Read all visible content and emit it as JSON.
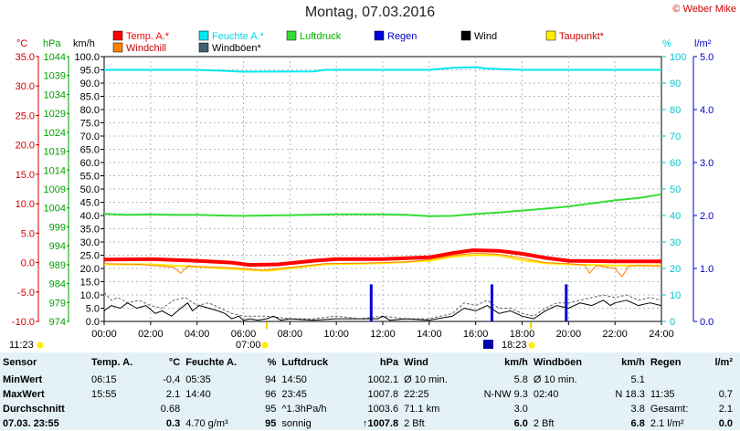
{
  "header": {
    "title": "Montag, 07.03.2016",
    "copyright": "© Weber Mike"
  },
  "legend": [
    {
      "label": "Temp. A.*",
      "color": "#ff0000",
      "textColor": "#ff0000"
    },
    {
      "label": "Feuchte A.*",
      "color": "#00e8f0",
      "textColor": "#00d8e0"
    },
    {
      "label": "Luftdruck",
      "color": "#33dd33",
      "textColor": "#00b000"
    },
    {
      "label": "Regen",
      "color": "#0000dd",
      "textColor": "#0000cc"
    },
    {
      "label": "Wind",
      "color": "#000000",
      "textColor": "#000000"
    },
    {
      "label": "Taupunkt*",
      "color": "#ffee00",
      "textColor": "#d00000"
    },
    {
      "label": "Windchill",
      "color": "#ff8000",
      "textColor": "#d00000"
    },
    {
      "label": "Windböen*",
      "color": "#406070",
      "textColor": "#000000"
    }
  ],
  "axis_titles": {
    "temp": "°C",
    "press": "hPa",
    "wind": "km/h",
    "hum": "%",
    "rain": "l/m²"
  },
  "chart_data": {
    "type": "line",
    "x_ticks": [
      "00:00",
      "02:00",
      "04:00",
      "06:00",
      "08:00",
      "10:00",
      "12:00",
      "14:00",
      "16:00",
      "18:00",
      "20:00",
      "22:00",
      "24:00"
    ],
    "x_range_hours": [
      0,
      24
    ],
    "temp_ticks": [
      "35.0",
      "30.0",
      "25.0",
      "20.0",
      "15.0",
      "10.0",
      "5.0",
      "0.0",
      "-5.0",
      "-10.0"
    ],
    "temp_range": [
      -10,
      35
    ],
    "press_ticks": [
      "1044",
      "1039",
      "1034",
      "1029",
      "1024",
      "1019",
      "1014",
      "1009",
      "1004",
      "999",
      "994",
      "989",
      "984",
      "979",
      "974"
    ],
    "press_range": [
      974,
      1044
    ],
    "wind_ticks": [
      "100.0",
      "95.0",
      "90.0",
      "85.0",
      "80.0",
      "75.0",
      "70.0",
      "65.0",
      "60.0",
      "55.0",
      "50.0",
      "45.0",
      "40.0",
      "35.0",
      "30.0",
      "25.0",
      "20.0",
      "15.0",
      "10.0",
      "5.0",
      "0.0"
    ],
    "wind_range": [
      0,
      100
    ],
    "hum_ticks": [
      "100",
      "90",
      "80",
      "70",
      "60",
      "50",
      "40",
      "30",
      "20",
      "10",
      "0"
    ],
    "hum_range": [
      0,
      100
    ],
    "rain_ticks": [
      "5.0",
      "4.0",
      "3.0",
      "2.0",
      "1.0",
      "0.0"
    ],
    "rain_range": [
      0,
      5
    ],
    "series": [
      {
        "name": "Temp. A.*",
        "axis": "temp",
        "color": "#ff0000",
        "width": 4,
        "points": [
          [
            0,
            0.5
          ],
          [
            2,
            0.6
          ],
          [
            4,
            0.3
          ],
          [
            5.5,
            0
          ],
          [
            6.25,
            -0.4
          ],
          [
            7.5,
            -0.3
          ],
          [
            9,
            0.3
          ],
          [
            10,
            0.6
          ],
          [
            12,
            0.6
          ],
          [
            14,
            0.9
          ],
          [
            15,
            1.6
          ],
          [
            15.9,
            2.1
          ],
          [
            17,
            2
          ],
          [
            18,
            1.5
          ],
          [
            19,
            0.8
          ],
          [
            20,
            0.3
          ],
          [
            22,
            0.2
          ],
          [
            24,
            0.2
          ]
        ]
      },
      {
        "name": "Taupunkt*",
        "axis": "temp",
        "color": "#ffe600",
        "width": 2,
        "points": [
          [
            0,
            -0.3
          ],
          [
            2,
            -0.3
          ],
          [
            4,
            -0.7
          ],
          [
            6,
            -1.2
          ],
          [
            7,
            -1.4
          ],
          [
            8,
            -1
          ],
          [
            9.5,
            -0.3
          ],
          [
            12,
            -0.1
          ],
          [
            14,
            0.3
          ],
          [
            15,
            1
          ],
          [
            16,
            1.3
          ],
          [
            17,
            1.2
          ],
          [
            18,
            0.4
          ],
          [
            19,
            -0.1
          ],
          [
            20,
            -0.3
          ],
          [
            22,
            -0.5
          ],
          [
            24,
            -0.5
          ]
        ]
      },
      {
        "name": "Windchill",
        "axis": "temp",
        "color": "#ff8000",
        "width": 1,
        "points": [
          [
            0,
            -0.2
          ],
          [
            1.5,
            -0.3
          ],
          [
            3,
            -0.8
          ],
          [
            3.3,
            -1.8
          ],
          [
            3.6,
            -0.6
          ],
          [
            5,
            -0.8
          ],
          [
            6,
            -1
          ],
          [
            6.8,
            -1.3
          ],
          [
            8,
            -0.8
          ],
          [
            9.5,
            -0.2
          ],
          [
            11,
            -0.1
          ],
          [
            12,
            0
          ],
          [
            13,
            0.1
          ],
          [
            14,
            0.5
          ],
          [
            15,
            1.2
          ],
          [
            16,
            1.6
          ],
          [
            17,
            1.4
          ],
          [
            18,
            0.8
          ],
          [
            19,
            0
          ],
          [
            20,
            -0.2
          ],
          [
            20.7,
            -0.4
          ],
          [
            20.9,
            -1.8
          ],
          [
            21.2,
            -0.5
          ],
          [
            22,
            -1
          ],
          [
            22.3,
            -2.4
          ],
          [
            22.6,
            -0.6
          ],
          [
            23,
            -0.5
          ],
          [
            24,
            -0.6
          ]
        ]
      },
      {
        "name": "Luftdruck",
        "axis": "press",
        "color": "#33dd33",
        "width": 2,
        "points": [
          [
            0,
            1002.4
          ],
          [
            1,
            1002.2
          ],
          [
            2,
            1002.3
          ],
          [
            3,
            1002.2
          ],
          [
            4,
            1002.2
          ],
          [
            5,
            1002
          ],
          [
            6,
            1001.9
          ],
          [
            8,
            1002.1
          ],
          [
            10,
            1002.3
          ],
          [
            12,
            1002.3
          ],
          [
            13,
            1002.2
          ],
          [
            14,
            1001.8
          ],
          [
            15,
            1001.9
          ],
          [
            16,
            1002.4
          ],
          [
            17,
            1002.8
          ],
          [
            18,
            1003.3
          ],
          [
            19,
            1003.8
          ],
          [
            20,
            1004.4
          ],
          [
            21,
            1005.2
          ],
          [
            22,
            1006
          ],
          [
            23,
            1006.6
          ],
          [
            24,
            1007.6
          ]
        ]
      },
      {
        "name": "Feuchte A.*",
        "axis": "hum",
        "color": "#00e8f0",
        "width": 2,
        "points": [
          [
            0,
            95
          ],
          [
            4,
            95
          ],
          [
            5,
            94.7
          ],
          [
            6,
            94.3
          ],
          [
            9,
            94.4
          ],
          [
            9.5,
            95
          ],
          [
            14,
            95
          ],
          [
            15,
            95.8
          ],
          [
            16,
            96
          ],
          [
            16.5,
            95.5
          ],
          [
            18,
            95
          ],
          [
            24,
            95
          ]
        ]
      },
      {
        "name": "Wind",
        "axis": "wind",
        "color": "#000000",
        "width": 1,
        "points": [
          [
            0,
            4
          ],
          [
            0.3,
            6
          ],
          [
            0.7,
            5
          ],
          [
            1,
            7
          ],
          [
            1.4,
            5
          ],
          [
            1.8,
            6
          ],
          [
            2.2,
            3
          ],
          [
            2.5,
            4
          ],
          [
            2.9,
            2
          ],
          [
            3.3,
            5
          ],
          [
            3.6,
            7
          ],
          [
            3.8,
            4
          ],
          [
            4.1,
            6
          ],
          [
            4.5,
            5
          ],
          [
            4.9,
            4
          ],
          [
            5.2,
            3
          ],
          [
            5.5,
            1
          ],
          [
            5.8,
            2
          ],
          [
            6,
            0.5
          ],
          [
            6.3,
            1
          ],
          [
            6.6,
            0.5
          ],
          [
            7,
            1
          ],
          [
            7.3,
            2
          ],
          [
            7.6,
            0.5
          ],
          [
            8,
            1
          ],
          [
            9,
            0.5
          ],
          [
            10,
            1
          ],
          [
            11,
            1
          ],
          [
            11.8,
            1
          ],
          [
            12,
            2
          ],
          [
            12.3,
            0.5
          ],
          [
            13,
            1
          ],
          [
            14,
            0.5
          ],
          [
            15,
            2
          ],
          [
            15.5,
            5
          ],
          [
            16,
            4
          ],
          [
            16.5,
            6
          ],
          [
            17,
            3
          ],
          [
            17.5,
            4
          ],
          [
            18,
            2
          ],
          [
            18.5,
            1
          ],
          [
            19,
            4
          ],
          [
            19.5,
            6
          ],
          [
            20,
            5
          ],
          [
            20.5,
            7
          ],
          [
            21,
            6
          ],
          [
            21.5,
            8
          ],
          [
            21.8,
            6
          ],
          [
            22,
            7
          ],
          [
            22.5,
            8
          ],
          [
            23,
            6
          ],
          [
            23.5,
            7
          ],
          [
            24,
            6
          ]
        ]
      },
      {
        "name": "Windböen*",
        "axis": "wind",
        "color": "#556677",
        "width": 1,
        "dash": true,
        "points": [
          [
            0,
            11
          ],
          [
            0.3,
            8
          ],
          [
            0.6,
            9
          ],
          [
            1,
            7
          ],
          [
            1.5,
            8
          ],
          [
            2,
            6
          ],
          [
            2.5,
            5
          ],
          [
            3,
            8
          ],
          [
            3.5,
            9
          ],
          [
            4,
            6
          ],
          [
            4.5,
            7
          ],
          [
            5,
            5
          ],
          [
            5.5,
            3
          ],
          [
            6,
            2
          ],
          [
            7,
            2
          ],
          [
            8,
            1
          ],
          [
            9,
            1
          ],
          [
            10,
            2
          ],
          [
            11,
            1
          ],
          [
            12,
            2
          ],
          [
            13,
            1
          ],
          [
            14,
            1
          ],
          [
            15,
            3
          ],
          [
            15.5,
            7
          ],
          [
            16,
            6
          ],
          [
            16.5,
            8
          ],
          [
            17,
            5
          ],
          [
            17.5,
            5
          ],
          [
            18,
            3
          ],
          [
            18.5,
            2
          ],
          [
            19,
            5
          ],
          [
            19.5,
            7
          ],
          [
            20,
            7
          ],
          [
            20.5,
            8
          ],
          [
            21,
            9
          ],
          [
            21.5,
            10
          ],
          [
            22,
            9
          ],
          [
            22.5,
            10
          ],
          [
            23,
            8
          ],
          [
            23.5,
            9
          ],
          [
            24,
            8
          ]
        ]
      }
    ],
    "rain_bars": [
      {
        "x": 11.5,
        "value": 0.7
      },
      {
        "x": 16.7,
        "value": 0.7
      },
      {
        "x": 19.9,
        "value": 0.7
      }
    ],
    "markers": {
      "left_time": "11:23",
      "sunrise": "07:00",
      "sunset": "18:23"
    }
  },
  "table": {
    "headers": [
      "Sensor",
      "Temp. A.",
      "°C",
      "Feuchte A.",
      "%",
      "Luftdruck",
      "hPa",
      "Wind",
      "km/h",
      "Windböen",
      "km/h",
      "Regen",
      "l/m²"
    ],
    "rows": [
      [
        "MinWert",
        "06:15",
        "-0.4",
        "05:35",
        "94",
        "14:50",
        "1002.1",
        "Ø 10 min.",
        "5.8",
        "Ø 10 min.",
        "5.1",
        "",
        ""
      ],
      [
        "MaxWert",
        "15:55",
        "2.1",
        "14:40",
        "96",
        "23:45",
        "1007.8",
        "22:25",
        "N-NW 9.3",
        "02:40",
        "N 18.3",
        "11:35",
        "0.7"
      ],
      [
        "Durchschnitt",
        "",
        "0.68",
        "",
        "95",
        "^1.3hPa/h",
        "1003.6",
        "71.1 km",
        "3.0",
        "",
        "3.8",
        "Gesamt:",
        "2.1"
      ],
      [
        "07.03. 23:55",
        "",
        "0.3",
        "4.70 g/m³",
        "95",
        "sonnig",
        "↑1007.8",
        "2 Bft",
        "6.0",
        "2 Bft",
        "6.8",
        "2.1 l/m²",
        "0.0"
      ]
    ]
  }
}
